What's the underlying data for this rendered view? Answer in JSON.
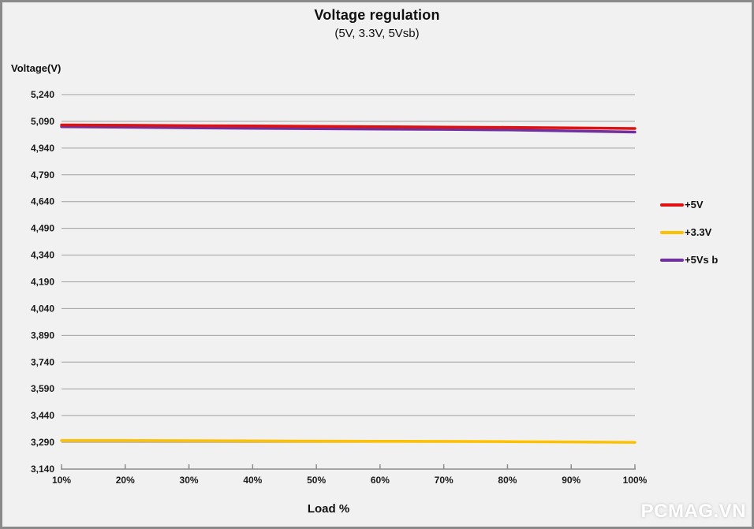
{
  "chart_data": {
    "type": "line",
    "title": "Voltage regulation",
    "subtitle": "(5V, 3.3V, 5Vsb)",
    "xlabel": "Load %",
    "ylabel": "Voltage(V)",
    "x": [
      10,
      20,
      30,
      40,
      50,
      60,
      70,
      80,
      90,
      100
    ],
    "x_tick_labels": [
      "10%",
      "20%",
      "30%",
      "40%",
      "50%",
      "60%",
      "70%",
      "80%",
      "90%",
      "100%"
    ],
    "y_ticks": [
      5.24,
      5.09,
      4.94,
      4.79,
      4.64,
      4.49,
      4.34,
      4.19,
      4.04,
      3.89,
      3.74,
      3.59,
      3.44,
      3.29,
      3.14
    ],
    "y_tick_labels": [
      "5,240",
      "5,090",
      "4,940",
      "4,790",
      "4,640",
      "4,490",
      "4,340",
      "4,190",
      "4,040",
      "3,890",
      "3,740",
      "3,590",
      "3,440",
      "3,290",
      "3,140"
    ],
    "ylim": [
      3.14,
      5.24
    ],
    "grid": "horizontal",
    "legend_position": "right",
    "series": [
      {
        "name": "+5V",
        "color": "#e01010",
        "values": [
          5.07,
          5.068,
          5.066,
          5.064,
          5.062,
          5.06,
          5.058,
          5.056,
          5.053,
          5.05
        ]
      },
      {
        "name": "+3.3V",
        "color": "#ffc000",
        "values": [
          3.3,
          3.3,
          3.299,
          3.298,
          3.297,
          3.296,
          3.295,
          3.294,
          3.292,
          3.29
        ]
      },
      {
        "name": "+5Vs b",
        "color": "#7030a0",
        "values": [
          5.06,
          5.057,
          5.054,
          5.051,
          5.049,
          5.047,
          5.045,
          5.042,
          5.036,
          5.03
        ]
      }
    ]
  },
  "watermark": "PCMAG.VN",
  "colors": {
    "background": "#f1f1f1",
    "border": "#8a8a8a",
    "gridline": "#9f9f9f",
    "axis": "#8c8c8c",
    "text": "#1a1a1a",
    "watermark": "#ffffff"
  }
}
